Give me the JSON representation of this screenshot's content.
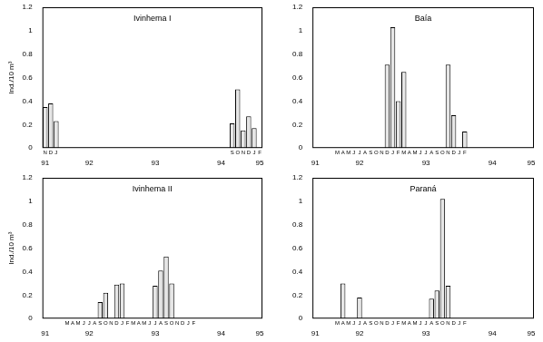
{
  "chart_data": [
    {
      "type": "bar",
      "title": "Ivinhema I",
      "ylabel": "Ind./10 m³",
      "color": "#e6e6e6",
      "grid": false,
      "ylim": [
        0,
        1.2
      ],
      "yticks": [
        0,
        0.2,
        0.4,
        0.6,
        0.8,
        1,
        1.2
      ],
      "categories": [
        "N",
        "D",
        "J",
        null,
        null,
        null,
        null,
        null,
        null,
        null,
        null,
        null,
        null,
        null,
        null,
        null,
        null,
        null,
        null,
        null,
        null,
        null,
        null,
        null,
        null,
        null,
        null,
        null,
        null,
        null,
        null,
        null,
        null,
        null,
        "S",
        "O",
        "N",
        "D",
        "J",
        "F"
      ],
      "years": [
        "91",
        null,
        null,
        null,
        null,
        null,
        null,
        null,
        "92",
        null,
        null,
        null,
        null,
        null,
        null,
        null,
        null,
        null,
        null,
        null,
        "93",
        null,
        null,
        null,
        null,
        null,
        null,
        null,
        null,
        null,
        null,
        null,
        "94",
        null,
        null,
        null,
        null,
        null,
        null,
        "95"
      ],
      "values": [
        0.35,
        0.38,
        0.23,
        null,
        null,
        null,
        null,
        null,
        null,
        null,
        null,
        null,
        null,
        null,
        null,
        null,
        null,
        null,
        null,
        null,
        null,
        null,
        null,
        null,
        null,
        null,
        null,
        null,
        null,
        null,
        null,
        null,
        null,
        null,
        0.21,
        0.5,
        0.15,
        0.27,
        0.17,
        null
      ]
    },
    {
      "type": "bar",
      "title": "Baía",
      "color": "#e6e6e6",
      "grid": false,
      "ylim": [
        0,
        1.2
      ],
      "yticks": [
        0,
        0.2,
        0.4,
        0.6,
        0.8,
        1,
        1.2
      ],
      "categories": [
        null,
        null,
        null,
        null,
        "M",
        "A",
        "M",
        "J",
        "J",
        "A",
        "S",
        "O",
        "N",
        "D",
        "J",
        "F",
        "M",
        "A",
        "M",
        "J",
        "J",
        "A",
        "S",
        "O",
        "N",
        "D",
        "J",
        "F",
        null,
        null,
        null,
        null,
        null,
        null,
        null,
        null,
        null,
        null,
        null,
        null
      ],
      "years": [
        "91",
        null,
        null,
        null,
        null,
        null,
        null,
        null,
        "92",
        null,
        null,
        null,
        null,
        null,
        null,
        null,
        null,
        null,
        null,
        null,
        "93",
        null,
        null,
        null,
        null,
        null,
        null,
        null,
        null,
        null,
        null,
        null,
        "94",
        null,
        null,
        null,
        null,
        null,
        null,
        "95"
      ],
      "values": [
        null,
        null,
        null,
        null,
        null,
        null,
        null,
        null,
        null,
        null,
        null,
        null,
        null,
        0.71,
        1.03,
        0.4,
        0.65,
        null,
        null,
        null,
        null,
        null,
        null,
        null,
        0.71,
        0.28,
        null,
        0.14,
        null,
        null,
        null,
        null,
        null,
        null,
        null,
        null,
        null,
        null,
        null,
        null
      ]
    },
    {
      "type": "bar",
      "title": "Ivinhema II",
      "ylabel": "Ind./10 m³",
      "color": "#e6e6e6",
      "grid": false,
      "ylim": [
        0,
        1.2
      ],
      "yticks": [
        0,
        0.2,
        0.4,
        0.6,
        0.8,
        1,
        1.2
      ],
      "categories": [
        null,
        null,
        null,
        null,
        "M",
        "A",
        "M",
        "J",
        "J",
        "A",
        "S",
        "O",
        "N",
        "D",
        "J",
        "F",
        "M",
        "A",
        "M",
        "J",
        "J",
        "A",
        "S",
        "O",
        "N",
        "D",
        "J",
        "F",
        null,
        null,
        null,
        null,
        null,
        null,
        null,
        null,
        null,
        null,
        null,
        null
      ],
      "years": [
        "91",
        null,
        null,
        null,
        null,
        null,
        null,
        null,
        "92",
        null,
        null,
        null,
        null,
        null,
        null,
        null,
        null,
        null,
        null,
        null,
        "93",
        null,
        null,
        null,
        null,
        null,
        null,
        null,
        null,
        null,
        null,
        null,
        "94",
        null,
        null,
        null,
        null,
        null,
        null,
        "95"
      ],
      "values": [
        null,
        null,
        null,
        null,
        null,
        null,
        null,
        null,
        null,
        null,
        0.14,
        0.22,
        null,
        0.29,
        0.3,
        null,
        null,
        null,
        null,
        null,
        0.28,
        0.41,
        0.53,
        0.3,
        null,
        null,
        null,
        null,
        null,
        null,
        null,
        null,
        null,
        null,
        null,
        null,
        null,
        null,
        null,
        null
      ]
    },
    {
      "type": "bar",
      "title": "Paraná",
      "color": "#e6e6e6",
      "grid": false,
      "ylim": [
        0,
        1.2
      ],
      "yticks": [
        0,
        0.2,
        0.4,
        0.6,
        0.8,
        1,
        1.2
      ],
      "categories": [
        null,
        null,
        null,
        null,
        "M",
        "A",
        "M",
        "J",
        "J",
        "A",
        "S",
        "O",
        "N",
        "D",
        "J",
        "F",
        "M",
        "A",
        "M",
        "J",
        "J",
        "A",
        "S",
        "O",
        "N",
        "D",
        "J",
        "F",
        null,
        null,
        null,
        null,
        null,
        null,
        null,
        null,
        null,
        null,
        null,
        null
      ],
      "years": [
        "91",
        null,
        null,
        null,
        null,
        null,
        null,
        null,
        "92",
        null,
        null,
        null,
        null,
        null,
        null,
        null,
        null,
        null,
        null,
        null,
        "93",
        null,
        null,
        null,
        null,
        null,
        null,
        null,
        null,
        null,
        null,
        null,
        "94",
        null,
        null,
        null,
        null,
        null,
        null,
        "95"
      ],
      "values": [
        null,
        null,
        null,
        null,
        null,
        0.3,
        null,
        null,
        0.18,
        null,
        null,
        null,
        null,
        null,
        null,
        null,
        null,
        null,
        null,
        null,
        null,
        0.17,
        0.24,
        1.02,
        0.28,
        null,
        null,
        null,
        null,
        null,
        null,
        null,
        null,
        null,
        null,
        null,
        null,
        null,
        null,
        null
      ]
    }
  ]
}
